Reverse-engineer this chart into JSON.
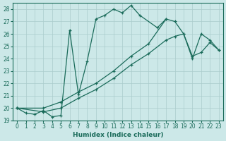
{
  "xlabel": "Humidex (Indice chaleur)",
  "bg_color": "#cce8e8",
  "grid_color": "#aacccc",
  "line_color": "#1a6b5a",
  "xlim": [
    -0.5,
    23.5
  ],
  "ylim": [
    19.0,
    28.5
  ],
  "yticks": [
    19,
    20,
    21,
    22,
    23,
    24,
    25,
    26,
    27,
    28
  ],
  "xticks": [
    0,
    1,
    2,
    3,
    4,
    5,
    6,
    7,
    8,
    9,
    10,
    11,
    12,
    13,
    14,
    15,
    16,
    17,
    18,
    19,
    20,
    21,
    22,
    23
  ],
  "series1": {
    "x": [
      0,
      1,
      2,
      3,
      4,
      5,
      6,
      7,
      8,
      9,
      10,
      11,
      12,
      13,
      14,
      16,
      17
    ],
    "y": [
      20.0,
      19.6,
      19.5,
      19.8,
      19.3,
      19.4,
      26.3,
      21.1,
      23.8,
      27.2,
      27.5,
      28.0,
      27.7,
      28.3,
      27.5,
      26.5,
      27.2
    ]
  },
  "series2": {
    "x": [
      0,
      3,
      5,
      7,
      9,
      11,
      13,
      15,
      17,
      18,
      19,
      20,
      21,
      22,
      23
    ],
    "y": [
      20.0,
      20.0,
      20.5,
      21.3,
      22.0,
      23.0,
      24.2,
      25.2,
      27.2,
      27.0,
      26.0,
      24.0,
      26.0,
      25.5,
      24.7
    ]
  },
  "series3": {
    "x": [
      0,
      3,
      5,
      7,
      9,
      11,
      13,
      15,
      17,
      18,
      19,
      20,
      21,
      22,
      23
    ],
    "y": [
      20.0,
      19.7,
      20.0,
      20.8,
      21.5,
      22.4,
      23.5,
      24.4,
      25.5,
      25.8,
      26.0,
      24.2,
      24.5,
      25.3,
      24.7
    ]
  }
}
